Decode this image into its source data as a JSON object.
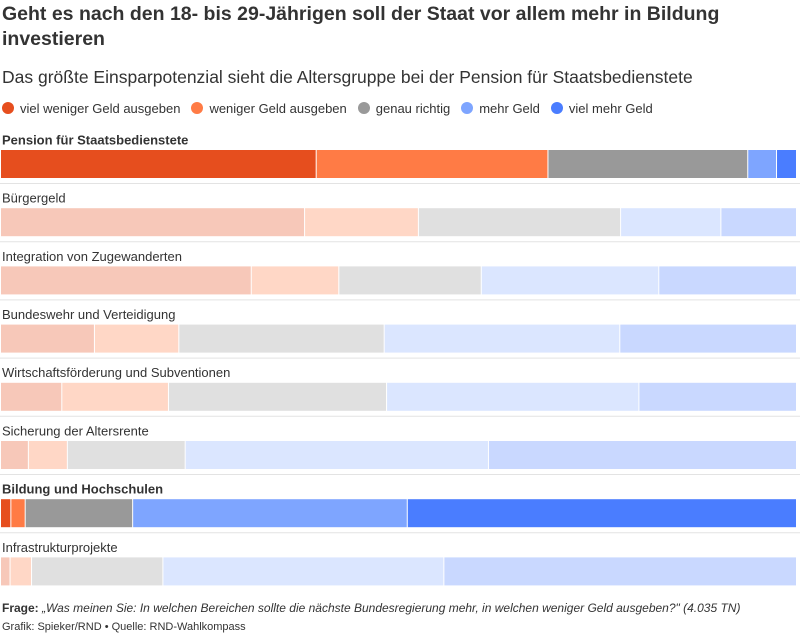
{
  "title": "Geht es nach den 18- bis 29-Jährigen soll der Staat vor allem mehr in Bildung investieren",
  "subtitle": "Das größte Einsparpotenzial sieht die Altersgruppe bei der Pension für Staatsbedienstete",
  "legend": [
    {
      "label": "viel weniger Geld ausgeben",
      "color": "#e64e1e"
    },
    {
      "label": "weniger Geld ausgeben",
      "color": "#ff7b45"
    },
    {
      "label": "genau richtig",
      "color": "#999999"
    },
    {
      "label": "mehr Geld",
      "color": "#7ea5ff"
    },
    {
      "label": "viel mehr Geld",
      "color": "#4a7dff"
    }
  ],
  "footer": {
    "question_label": "Frage:",
    "question_text": "„Was meinen Sie: In welchen Bereichen sollte die nächste Bundesregierung mehr, in welchen weniger Geld ausgeben?\" (4.035 TN)",
    "source": "Grafik: Spieker/RND • Quelle: RND-Wahlkompass"
  },
  "chart_data": {
    "type": "bar",
    "orientation": "horizontal",
    "stacked": true,
    "percent": true,
    "legend_position": "top",
    "highlighted_categories": [
      "Pension für Staatsbedienstete",
      "Bildung und Hochschulen"
    ],
    "categories": [
      "Pension für Staatsbedienstete",
      "Bürgergeld",
      "Integration von Zugewanderten",
      "Bundeswehr und Verteidigung",
      "Wirtschaftsförderung und Subventionen",
      "Sicherung der Altersrente",
      "Bildung und Hochschulen",
      "Infrastrukturprojekte"
    ],
    "series": [
      {
        "name": "viel weniger Geld ausgeben",
        "color": "#e64e1e",
        "values": [
          39.5,
          38.2,
          31.5,
          11.8,
          7.7,
          3.5,
          1.3,
          1.2
        ]
      },
      {
        "name": "weniger Geld ausgeben",
        "color": "#ff7b45",
        "values": [
          29.0,
          14.3,
          11.0,
          10.6,
          13.4,
          4.9,
          1.8,
          2.7
        ]
      },
      {
        "name": "genau richtig",
        "color": "#999999",
        "values": [
          25.0,
          25.4,
          17.9,
          25.8,
          27.4,
          14.8,
          13.5,
          16.5
        ]
      },
      {
        "name": "mehr Geld",
        "color": "#7ea5ff",
        "values": [
          3.6,
          12.6,
          22.3,
          29.6,
          31.7,
          38.1,
          34.5,
          35.3
        ]
      },
      {
        "name": "viel mehr Geld",
        "color": "#4a7dff",
        "values": [
          2.5,
          9.5,
          17.3,
          22.2,
          19.8,
          38.7,
          48.9,
          44.3
        ]
      }
    ]
  }
}
